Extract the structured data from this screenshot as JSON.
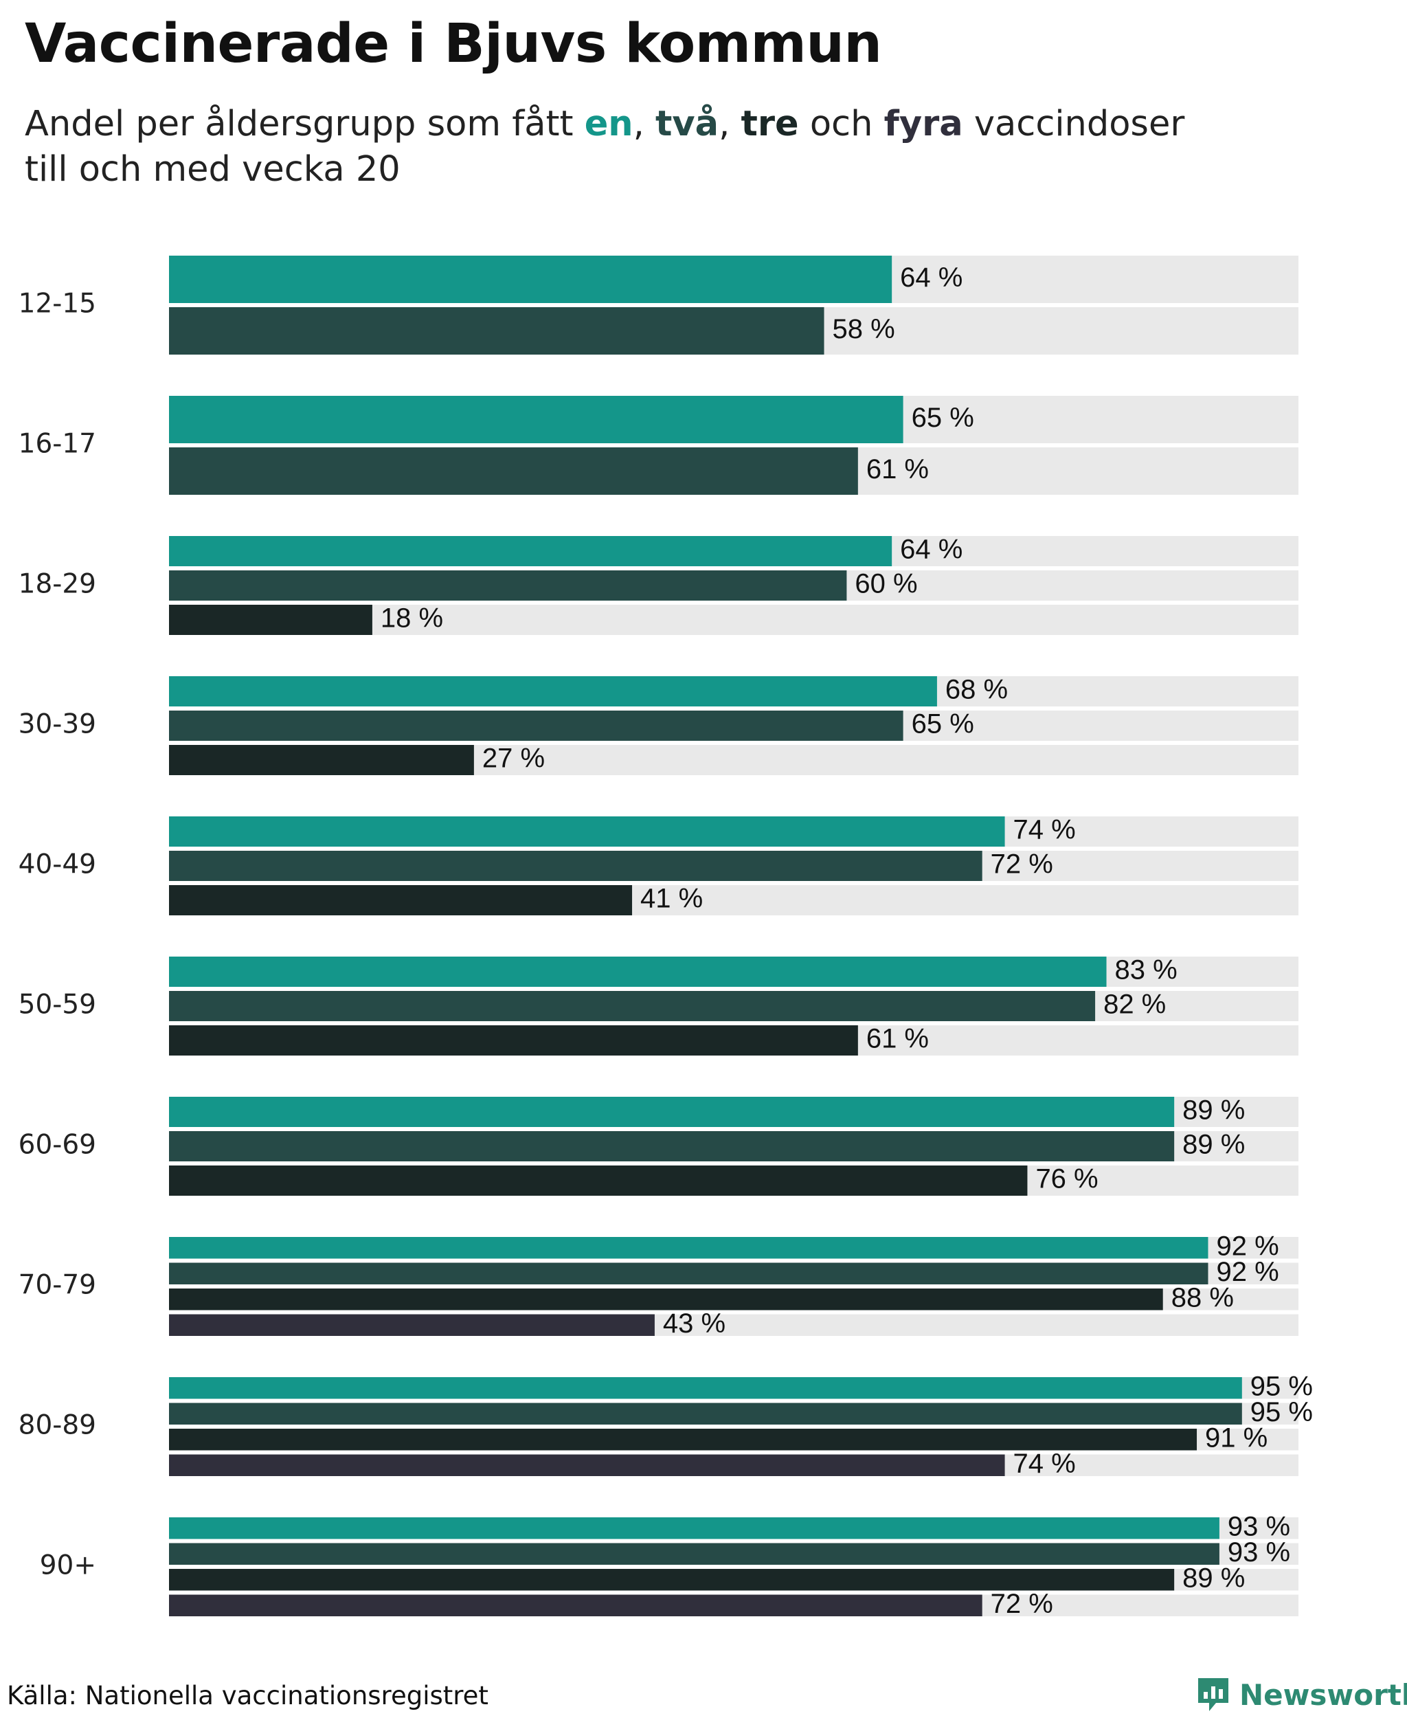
{
  "title": "Vaccinerade i Bjuvs kommun",
  "subtitle": {
    "prefix": "Andel per åldersgrupp som fått ",
    "dose1": "en",
    "sep1": ", ",
    "dose2": "två",
    "sep2": ", ",
    "dose3": "tre",
    "sep3": " och ",
    "dose4": "fyra",
    "line1_suffix": " vaccindoser",
    "line2": "till och med vecka 20"
  },
  "source": "Källa: Nationella vaccinationsregistret",
  "brand": {
    "name": "Newsworthy",
    "icon": "newsworthy-logo-icon",
    "color": "#2d8a72"
  },
  "colors": {
    "track": "#e9e9e9",
    "dose1": "#14968a",
    "dose2": "#264a47",
    "dose3": "#1a2726",
    "dose4": "#302f3c"
  },
  "chart_data": {
    "type": "bar",
    "orientation": "horizontal",
    "xlim": [
      0,
      100
    ],
    "unit": "%",
    "categories": [
      "12-15",
      "16-17",
      "18-29",
      "30-39",
      "40-49",
      "50-59",
      "60-69",
      "70-79",
      "80-89",
      "90+"
    ],
    "series": [
      {
        "name": "en",
        "values": [
          64,
          65,
          64,
          68,
          74,
          83,
          89,
          92,
          95,
          93
        ]
      },
      {
        "name": "två",
        "values": [
          58,
          61,
          60,
          65,
          72,
          82,
          89,
          92,
          95,
          93
        ]
      },
      {
        "name": "tre",
        "values": [
          null,
          null,
          18,
          27,
          41,
          61,
          76,
          88,
          91,
          89
        ]
      },
      {
        "name": "fyra",
        "values": [
          null,
          null,
          null,
          null,
          null,
          null,
          null,
          43,
          74,
          72
        ]
      }
    ]
  }
}
